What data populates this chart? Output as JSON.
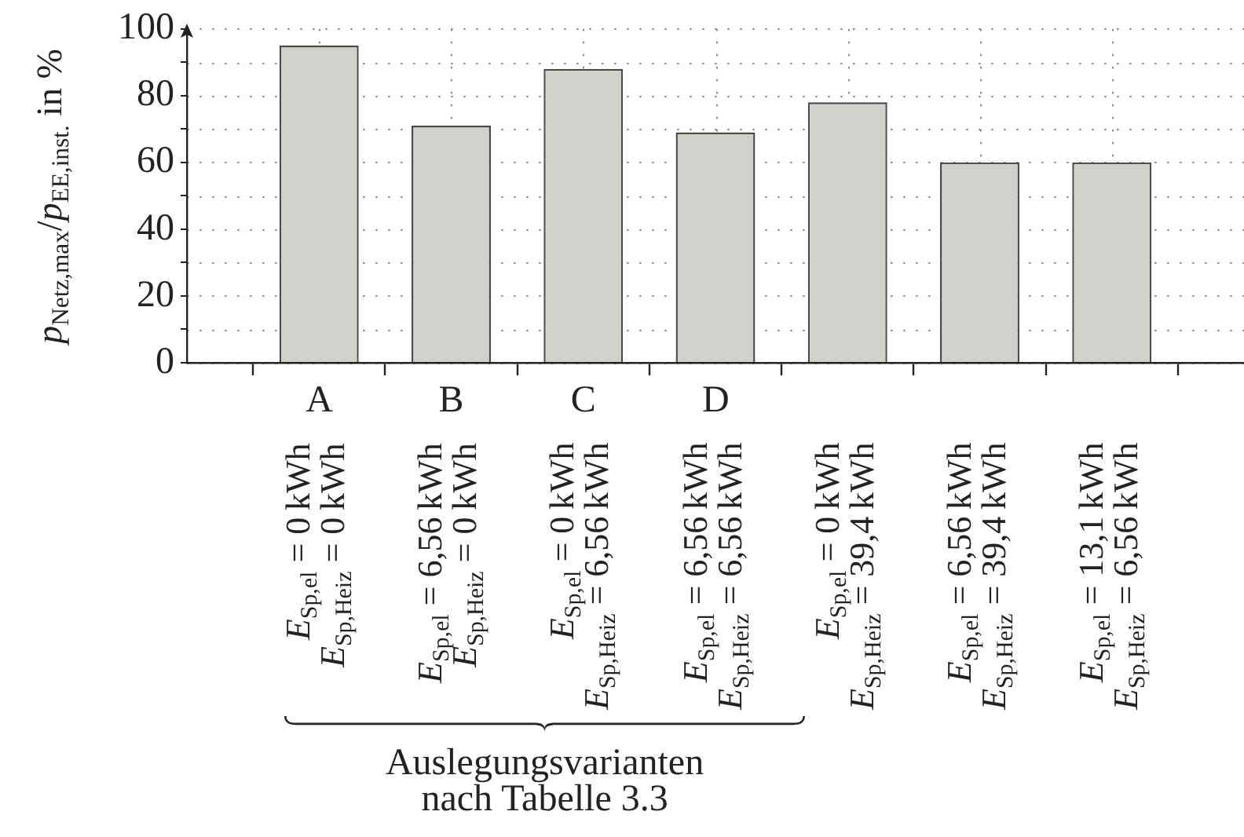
{
  "chart_data": {
    "type": "bar",
    "categories": [
      "A\nE$_{Sp,el}$ = 0 kWh\nE$_{Sp,Heiz}$ = 0 kWh",
      "B\nE$_{Sp,el}$ = 6,56 kWh\nE$_{Sp,Heiz}$ = 0 kWh",
      "C\nE$_{Sp,el}$ = 0 kWh\nE$_{Sp,Heiz}$ = 6,56 kWh",
      "D\nE$_{Sp,el}$ = 6,56 kWh\nE$_{Sp,Heiz}$ = 6,56 kWh",
      "E$_{Sp,el}$ = 0 kWh\nE$_{Sp,Heiz}$ = 39,4 kWh",
      "E$_{Sp,el}$ = 6,56 kWh\nE$_{Sp,Heiz}$ = 39,4 kWh",
      "E$_{Sp,el}$ = 13,1 kWh\nE$_{Sp,Heiz}$ = 6,56 kWh"
    ],
    "values": [
      95,
      71,
      88,
      69,
      78,
      60,
      60
    ],
    "color": "#d1d1cb",
    "ylabel": "p$_{Netz,max}$/p$_{EE,inst.}$ in %",
    "ylim": [
      0,
      100
    ],
    "yticks": [
      0,
      {
        "value": 10,
        "label": null
      },
      20,
      {
        "value": 30,
        "label": null
      },
      40,
      {
        "value": 50,
        "label": null
      },
      60,
      {
        "value": 70,
        "label": null
      },
      80,
      {
        "value": 90,
        "label": null
      },
      100
    ],
    "grid": true,
    "annotations": [
      "Auslegungsvarianten\nnach Tabelle 3.3"
    ]
  }
}
